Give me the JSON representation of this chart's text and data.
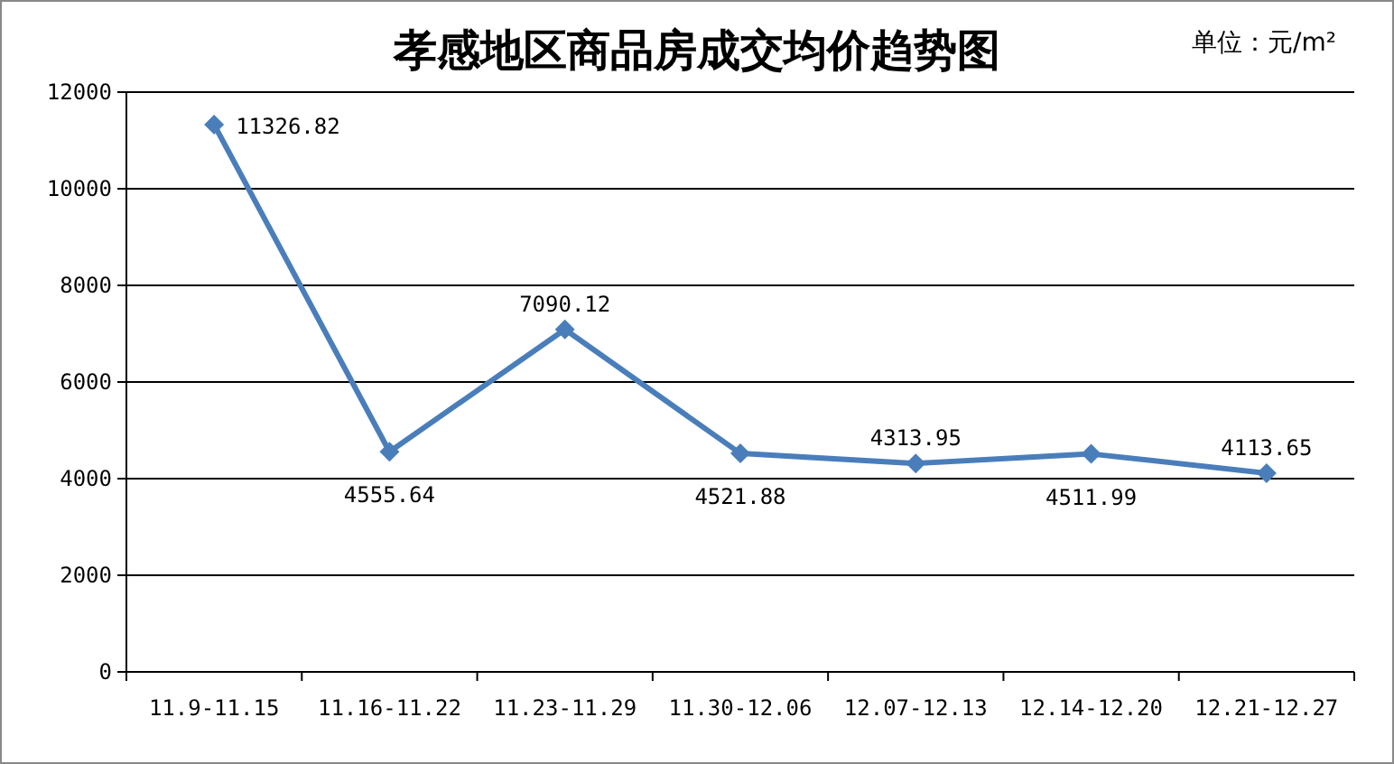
{
  "chart_data": {
    "type": "line",
    "title": "孝感地区商品房成交均价趋势图",
    "annotations": [
      "单位：元/m²"
    ],
    "categories": [
      "11.9-11.15",
      "11.16-11.22",
      "11.23-11.29",
      "11.30-12.06",
      "12.07-12.13",
      "12.14-12.20",
      "12.21-12.27"
    ],
    "series": [
      {
        "color": "#4a7ebb",
        "values": [
          11326.82,
          4555.64,
          7090.12,
          4521.88,
          4313.95,
          4511.99,
          4113.65
        ]
      }
    ],
    "ylim": [
      0,
      12000
    ],
    "yticks": [
      0,
      2000,
      4000,
      6000,
      8000,
      10000,
      12000
    ],
    "grid": "y",
    "marker": "diamond",
    "line_style": "solid",
    "data_labels": true
  }
}
